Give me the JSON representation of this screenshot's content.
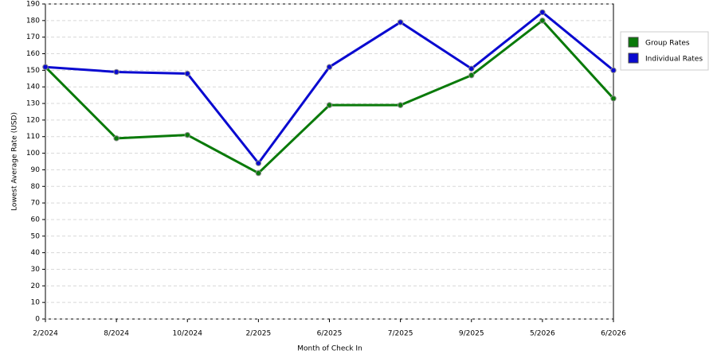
{
  "chart_data": {
    "type": "line",
    "x_label": "Month of Check In",
    "y_label": "Lowest Average Rate (USD)",
    "categories": [
      "2/2024",
      "8/2024",
      "10/2024",
      "2/2025",
      "6/2025",
      "7/2025",
      "9/2025",
      "5/2026",
      "6/2026"
    ],
    "series": [
      {
        "name": "Group Rates",
        "color": "#0a7a0a",
        "values": [
          152,
          109,
          111,
          88,
          129,
          129,
          147,
          180,
          133
        ]
      },
      {
        "name": "Individual Rates",
        "color": "#0a0ad0",
        "values": [
          152,
          149,
          148,
          94,
          152,
          179,
          151,
          185,
          150
        ]
      }
    ],
    "ylim": [
      0,
      190
    ],
    "yticks": [
      0,
      10,
      20,
      30,
      40,
      50,
      60,
      70,
      80,
      90,
      100,
      110,
      120,
      130,
      140,
      150,
      160,
      170,
      180,
      190
    ],
    "grid": true,
    "legend": "right"
  }
}
